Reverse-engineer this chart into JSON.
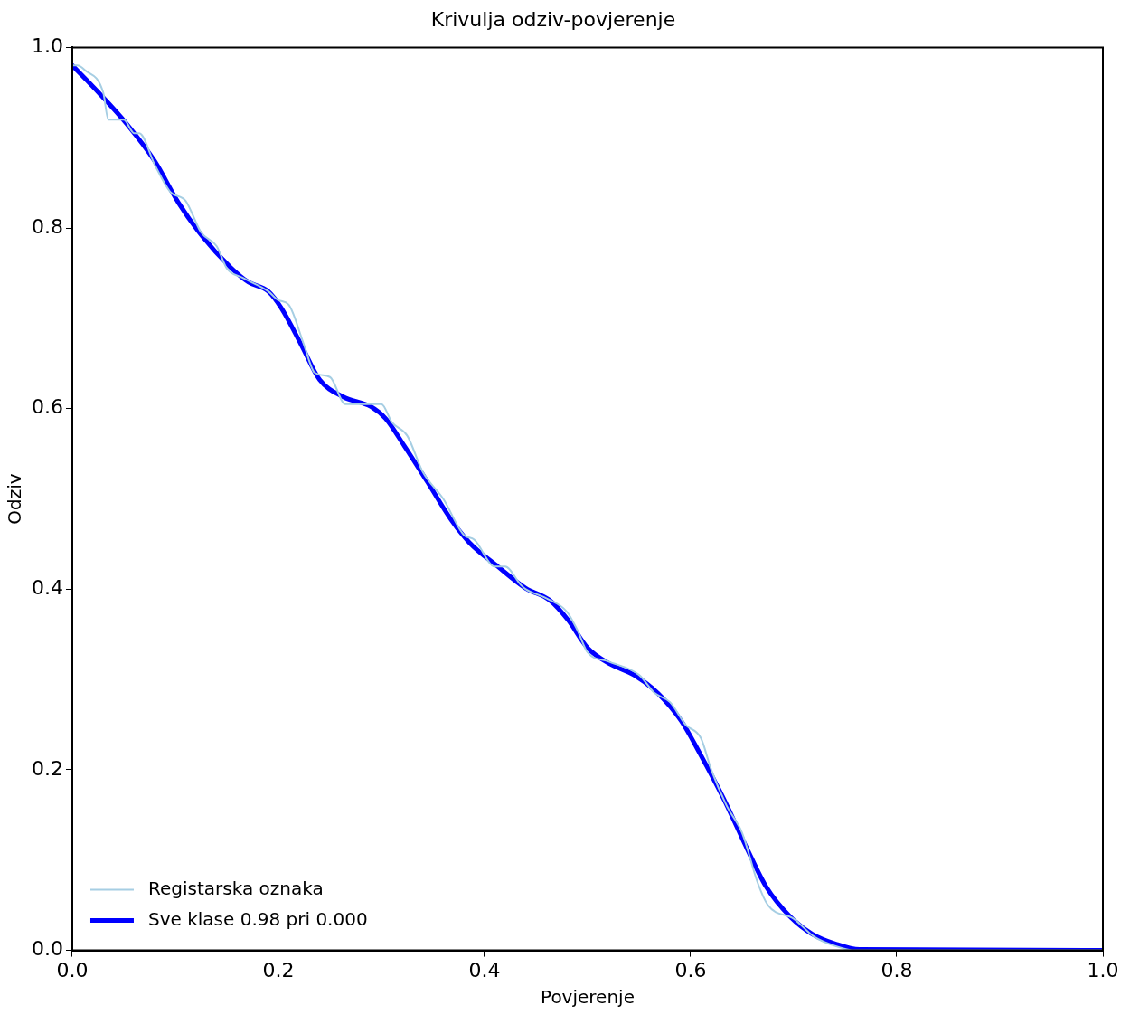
{
  "chart_data": {
    "type": "line",
    "title": "Krivulja odziv-povjerenje",
    "xlabel": "Povjerenje",
    "ylabel": "Odziv",
    "xlim": [
      0,
      1
    ],
    "ylim": [
      0,
      1
    ],
    "xticks": [
      {
        "value": 0,
        "label": "0.0"
      },
      0.2,
      0.4,
      0.6,
      0.8,
      {
        "value": 1,
        "label": "1.0"
      }
    ],
    "yticks": [
      {
        "value": 0,
        "label": "0.0"
      },
      0.2,
      0.4,
      0.6,
      0.8,
      {
        "value": 1,
        "label": "1.0"
      }
    ],
    "grid": false,
    "legend": "bottom left",
    "marker": "none",
    "line_style": "solid",
    "series": [
      {
        "name": "Registarska oznaka",
        "color": "#a6cee3",
        "x": [
          0,
          0.005,
          0.012,
          0.03,
          0.035,
          0.05,
          0.06,
          0.065,
          0.08,
          0.095,
          0.11,
          0.125,
          0.14,
          0.15,
          0.165,
          0.19,
          0.2,
          0.21,
          0.225,
          0.235,
          0.25,
          0.265,
          0.3,
          0.31,
          0.325,
          0.34,
          0.36,
          0.38,
          0.39,
          0.41,
          0.42,
          0.435,
          0.44,
          0.46,
          0.48,
          0.49,
          0.5,
          0.52,
          0.55,
          0.565,
          0.58,
          0.595,
          0.61,
          0.62,
          0.635,
          0.65,
          0.665,
          0.675,
          0.7,
          0.72,
          0.74,
          0.76,
          1
        ],
        "values": [
          0.98,
          0.98,
          0.975,
          0.95,
          0.92,
          0.92,
          0.905,
          0.905,
          0.87,
          0.84,
          0.83,
          0.795,
          0.78,
          0.755,
          0.745,
          0.73,
          0.72,
          0.715,
          0.67,
          0.64,
          0.635,
          0.605,
          0.605,
          0.585,
          0.57,
          0.53,
          0.5,
          0.46,
          0.455,
          0.425,
          0.425,
          0.405,
          0.4,
          0.39,
          0.375,
          0.355,
          0.33,
          0.32,
          0.305,
          0.285,
          0.275,
          0.25,
          0.235,
          0.2,
          0.16,
          0.13,
          0.075,
          0.05,
          0.035,
          0.015,
          0.005,
          0,
          0
        ]
      },
      {
        "name": "Sve klase 0.98 pri 0.000",
        "color": "#0000ff",
        "x": [
          0,
          0.0255,
          0.053,
          0.08,
          0.103,
          0.126,
          0.153,
          0.171,
          0.19,
          0.203,
          0.222,
          0.24,
          0.263,
          0.29,
          0.304,
          0.322,
          0.345,
          0.367,
          0.385,
          0.413,
          0.44,
          0.463,
          0.481,
          0.5,
          0.522,
          0.545,
          0.568,
          0.591,
          0.609,
          0.632,
          0.655,
          0.673,
          0.696,
          0.718,
          0.741,
          0.764,
          1
        ],
        "values": [
          0.98,
          0.95,
          0.915,
          0.874,
          0.828,
          0.791,
          0.757,
          0.74,
          0.73,
          0.711,
          0.671,
          0.632,
          0.613,
          0.602,
          0.589,
          0.559,
          0.518,
          0.478,
          0.452,
          0.425,
          0.401,
          0.388,
          0.366,
          0.335,
          0.317,
          0.305,
          0.285,
          0.254,
          0.218,
          0.168,
          0.112,
          0.071,
          0.038,
          0.018,
          0.007,
          0.001,
          0
        ]
      }
    ]
  }
}
